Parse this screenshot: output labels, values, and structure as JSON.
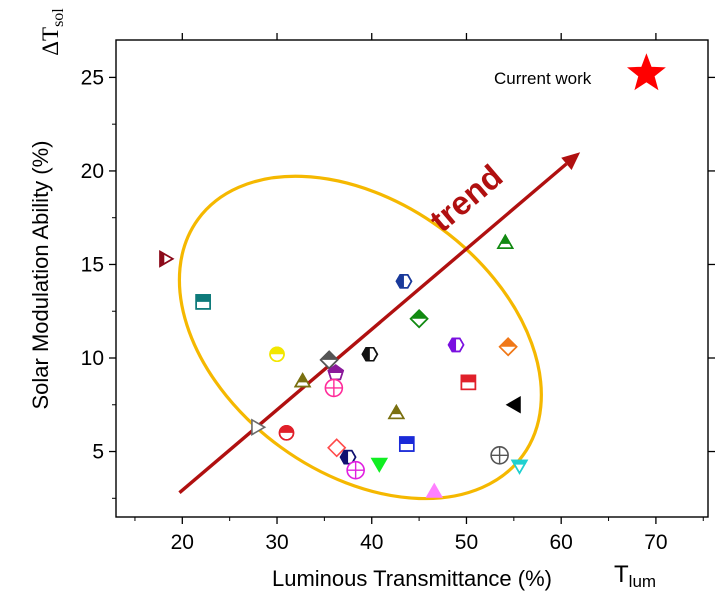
{
  "chart_data": {
    "type": "scatter",
    "xlabel": "Luminous Transmittance (%)",
    "ylabel": "Solar Modulation Ability (%)",
    "x_symbol": "T",
    "x_symbol_sub": "lum",
    "y_symbol": "ΔT",
    "y_symbol_sub": "sol",
    "xlim": [
      13,
      75.5
    ],
    "ylim": [
      1.5,
      27
    ],
    "xticks": [
      20,
      30,
      40,
      50,
      60,
      70
    ],
    "yticks": [
      5,
      10,
      15,
      20,
      25
    ],
    "xtick_labels": [
      "20",
      "30",
      "40",
      "50",
      "60",
      "70"
    ],
    "ytick_labels": [
      "5",
      "10",
      "15",
      "20",
      "25"
    ],
    "grid": false,
    "legend": "none",
    "highlight": {
      "label": "Current work",
      "x": 69.0,
      "y": 25.2,
      "marker": "star",
      "color": "#ff0000"
    },
    "trend": {
      "label": "trend",
      "color": "#b01010",
      "from": [
        19.7,
        2.8
      ],
      "to": [
        62.0,
        21.0
      ]
    },
    "ellipse": {
      "color": "#f5b800",
      "center": [
        38.8,
        11.1
      ],
      "rx_data": 21.2,
      "ry_data": 7.25,
      "rotation_deg": 36
    },
    "points": [
      {
        "x": 18.1,
        "y": 15.3,
        "marker": "tri-right",
        "color": "#8b0a1a",
        "fill": "half"
      },
      {
        "x": 22.2,
        "y": 13.0,
        "marker": "square",
        "color": "#0e7a7a",
        "fill": "half"
      },
      {
        "x": 30.0,
        "y": 10.2,
        "marker": "circle",
        "color": "#f2e600",
        "fill": "half"
      },
      {
        "x": 31.0,
        "y": 6.0,
        "marker": "circle",
        "color": "#e0202a",
        "fill": "half"
      },
      {
        "x": 32.7,
        "y": 8.7,
        "marker": "triangle",
        "color": "#7a7010",
        "fill": "half"
      },
      {
        "x": 27.8,
        "y": 6.3,
        "marker": "tri-right",
        "color": "#6a6a6a",
        "fill": "open"
      },
      {
        "x": 35.5,
        "y": 9.9,
        "marker": "diamond",
        "color": "#555555",
        "fill": "half"
      },
      {
        "x": 36.2,
        "y": 9.2,
        "marker": "pentagon",
        "color": "#8b1a9b",
        "fill": "half"
      },
      {
        "x": 36.0,
        "y": 8.4,
        "marker": "circle-plus",
        "color": "#ff2b9a",
        "fill": "open"
      },
      {
        "x": 36.3,
        "y": 5.2,
        "marker": "diamond",
        "color": "#ff4a4a",
        "fill": "open"
      },
      {
        "x": 37.5,
        "y": 4.7,
        "marker": "hexagon",
        "color": "#101070",
        "fill": "half"
      },
      {
        "x": 38.3,
        "y": 4.0,
        "marker": "circle-plus",
        "color": "#e020e0",
        "fill": "open"
      },
      {
        "x": 39.8,
        "y": 10.2,
        "marker": "hexagon",
        "color": "#111111",
        "fill": "half"
      },
      {
        "x": 40.8,
        "y": 4.4,
        "marker": "triangle-down",
        "color": "#11ee22",
        "fill": "full"
      },
      {
        "x": 42.6,
        "y": 7.0,
        "marker": "triangle",
        "color": "#7a7010",
        "fill": "half"
      },
      {
        "x": 43.4,
        "y": 14.1,
        "marker": "hexagon",
        "color": "#1a3a9b",
        "fill": "half"
      },
      {
        "x": 43.7,
        "y": 5.4,
        "marker": "square",
        "color": "#1a2ad8",
        "fill": "half"
      },
      {
        "x": 45.0,
        "y": 12.1,
        "marker": "diamond",
        "color": "#128a12",
        "fill": "half"
      },
      {
        "x": 46.6,
        "y": 2.8,
        "marker": "triangle",
        "color": "#ff80ff",
        "fill": "full"
      },
      {
        "x": 48.9,
        "y": 10.7,
        "marker": "hexagon",
        "color": "#7a10e0",
        "fill": "half"
      },
      {
        "x": 50.2,
        "y": 8.7,
        "marker": "square",
        "color": "#e0202a",
        "fill": "half"
      },
      {
        "x": 53.5,
        "y": 4.8,
        "marker": "circle-plus",
        "color": "#555555",
        "fill": "open"
      },
      {
        "x": 54.1,
        "y": 16.1,
        "marker": "triangle",
        "color": "#128a12",
        "fill": "half"
      },
      {
        "x": 54.4,
        "y": 10.6,
        "marker": "diamond",
        "color": "#f07818",
        "fill": "half"
      },
      {
        "x": 55.2,
        "y": 7.5,
        "marker": "tri-left",
        "color": "#000000",
        "fill": "full"
      },
      {
        "x": 55.6,
        "y": 4.3,
        "marker": "triangle-down",
        "color": "#20d0d0",
        "fill": "half"
      }
    ]
  }
}
